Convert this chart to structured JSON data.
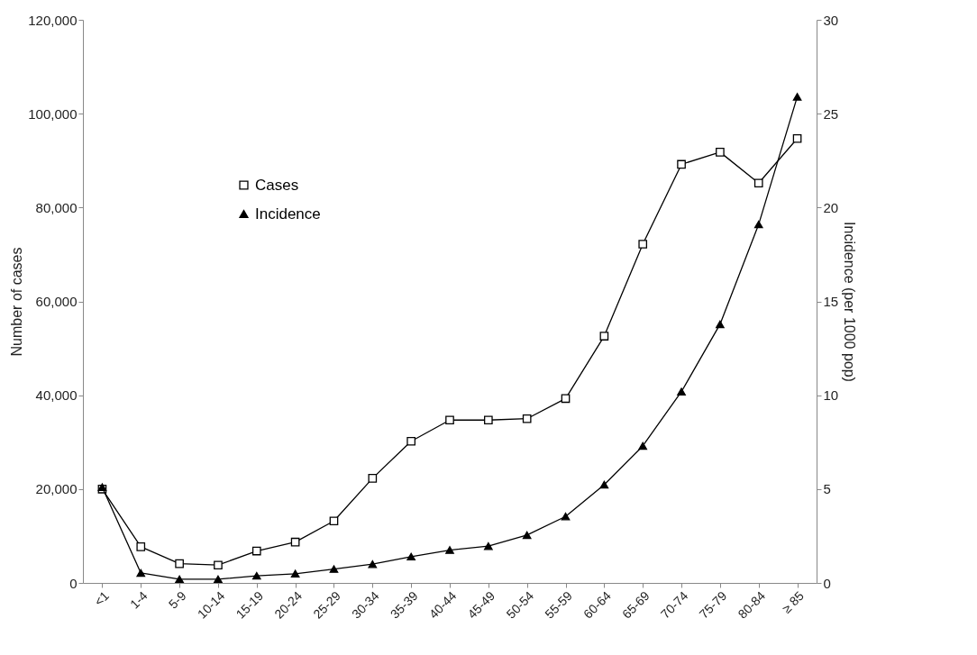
{
  "chart_data": {
    "type": "line",
    "ylabel": "Number of cases",
    "y2label": "Incidence (per 1000 pop)",
    "categories": [
      "<1",
      "1-4",
      "5-9",
      "10-14",
      "15-19",
      "20-24",
      "25-29",
      "30-34",
      "35-39",
      "40-44",
      "45-49",
      "50-54",
      "55-59",
      "60-64",
      "65-69",
      "70-74",
      "75-79",
      "80-84",
      "≥ 85"
    ],
    "series": [
      {
        "name": "Cases",
        "color": "#000000",
        "marker": "square",
        "values": [
          20000,
          7700,
          4100,
          3800,
          6800,
          8700,
          13200,
          22300,
          30200,
          34700,
          34700,
          35000,
          39300,
          52600,
          72200,
          89200,
          91800,
          85200,
          94700
        ]
      },
      {
        "name": "Incidence",
        "color": "#000000",
        "marker": "triangle",
        "axis": "y2",
        "values": [
          5.1,
          0.53,
          0.2,
          0.2,
          0.38,
          0.49,
          0.74,
          1.0,
          1.4,
          1.75,
          1.96,
          2.55,
          3.54,
          5.23,
          7.3,
          10.19,
          13.78,
          19.1,
          25.9
        ]
      }
    ],
    "ylim": [
      0,
      120000
    ],
    "yticks": [
      {
        "value": 0,
        "label": "0"
      },
      {
        "value": 20000,
        "label": "20,000"
      },
      {
        "value": 40000,
        "label": "40,000"
      },
      {
        "value": 60000,
        "label": "60,000"
      },
      {
        "value": 80000,
        "label": "80,000"
      },
      {
        "value": 100000,
        "label": "100,000"
      },
      {
        "value": 120000,
        "label": "120,000"
      }
    ],
    "y2lim": [
      0,
      30
    ],
    "y2ticks": [
      0,
      5,
      10,
      15,
      20,
      25,
      30
    ],
    "legend": "top left",
    "grid": false,
    "line_style": "solid"
  }
}
